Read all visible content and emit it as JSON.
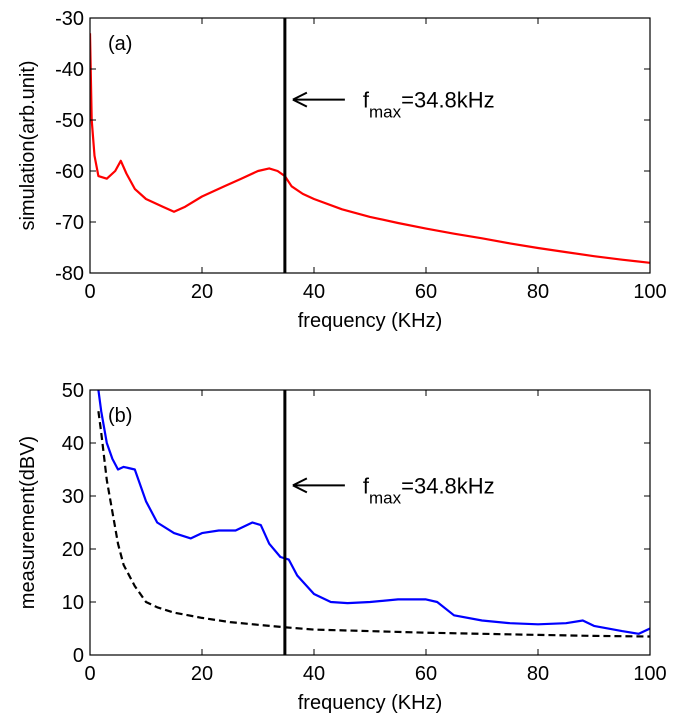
{
  "chart_data": [
    {
      "type": "line",
      "panel_label": "(a)",
      "xlabel": "frequency (KHz)",
      "ylabel": "simulation(arb.unit)",
      "xlim": [
        0,
        100
      ],
      "ylim": [
        -80,
        -30
      ],
      "xticks": [
        0,
        20,
        40,
        60,
        80,
        100
      ],
      "yticks": [
        -80,
        -70,
        -60,
        -50,
        -40,
        -30
      ],
      "grid": false,
      "series": [
        {
          "color": "#ff0000",
          "line_style": "solid",
          "points": [
            [
              0,
              -33
            ],
            [
              0.3,
              -50
            ],
            [
              0.8,
              -57
            ],
            [
              1.5,
              -61
            ],
            [
              3,
              -61.5
            ],
            [
              4.5,
              -60
            ],
            [
              5.5,
              -58
            ],
            [
              6.5,
              -60.5
            ],
            [
              8,
              -63.5
            ],
            [
              10,
              -65.5
            ],
            [
              13,
              -67
            ],
            [
              15,
              -68
            ],
            [
              17,
              -67
            ],
            [
              20,
              -65
            ],
            [
              24,
              -63
            ],
            [
              27,
              -61.5
            ],
            [
              30,
              -60
            ],
            [
              32,
              -59.5
            ],
            [
              33.5,
              -60
            ],
            [
              34.8,
              -61
            ],
            [
              36,
              -63
            ],
            [
              38,
              -64.5
            ],
            [
              40,
              -65.5
            ],
            [
              45,
              -67.5
            ],
            [
              50,
              -69
            ],
            [
              55,
              -70.2
            ],
            [
              60,
              -71.3
            ],
            [
              65,
              -72.3
            ],
            [
              70,
              -73.2
            ],
            [
              75,
              -74.2
            ],
            [
              80,
              -75.1
            ],
            [
              85,
              -75.9
            ],
            [
              90,
              -76.7
            ],
            [
              95,
              -77.4
            ],
            [
              100,
              -78
            ]
          ]
        }
      ],
      "vline": {
        "x": 34.8,
        "color": "#000000"
      },
      "annotation": {
        "text_f": "f",
        "text_sub": "max",
        "text_value": "=34.8kHz",
        "arrow_to_x": 34.8,
        "arrow_y": -46
      }
    },
    {
      "type": "line",
      "panel_label": "(b)",
      "xlabel": "frequency (KHz)",
      "ylabel": "measurement(dBV)",
      "xlim": [
        0,
        100
      ],
      "ylim": [
        0,
        50
      ],
      "xticks": [
        0,
        20,
        40,
        60,
        80,
        100
      ],
      "yticks": [
        0,
        10,
        20,
        30,
        40,
        50
      ],
      "grid": false,
      "series": [
        {
          "color": "#0000ff",
          "line_style": "solid",
          "points": [
            [
              1.5,
              50
            ],
            [
              2,
              46
            ],
            [
              3,
              40
            ],
            [
              4,
              37
            ],
            [
              5,
              35
            ],
            [
              6,
              35.5
            ],
            [
              8,
              35
            ],
            [
              10,
              29
            ],
            [
              12,
              25
            ],
            [
              15,
              23
            ],
            [
              18,
              22
            ],
            [
              20,
              23
            ],
            [
              23,
              23.5
            ],
            [
              26,
              23.5
            ],
            [
              29,
              25
            ],
            [
              30.5,
              24.5
            ],
            [
              32,
              21
            ],
            [
              34,
              18.5
            ],
            [
              35.5,
              18
            ],
            [
              37,
              15
            ],
            [
              40,
              11.5
            ],
            [
              43,
              10
            ],
            [
              46,
              9.8
            ],
            [
              50,
              10
            ],
            [
              55,
              10.5
            ],
            [
              60,
              10.5
            ],
            [
              62,
              10
            ],
            [
              65,
              7.5
            ],
            [
              70,
              6.5
            ],
            [
              75,
              6
            ],
            [
              80,
              5.8
            ],
            [
              85,
              6
            ],
            [
              88,
              6.5
            ],
            [
              90,
              5.5
            ],
            [
              95,
              4.5
            ],
            [
              98,
              4
            ],
            [
              100,
              5
            ]
          ]
        },
        {
          "color": "#000000",
          "line_style": "dashed",
          "points": [
            [
              1.5,
              46
            ],
            [
              2,
              42
            ],
            [
              3,
              33
            ],
            [
              4,
              27
            ],
            [
              5,
              21
            ],
            [
              6,
              17
            ],
            [
              8,
              13
            ],
            [
              10,
              10
            ],
            [
              12,
              9
            ],
            [
              15,
              8
            ],
            [
              20,
              7
            ],
            [
              25,
              6.2
            ],
            [
              30,
              5.7
            ],
            [
              35,
              5.2
            ],
            [
              40,
              4.8
            ],
            [
              50,
              4.5
            ],
            [
              60,
              4.2
            ],
            [
              70,
              4
            ],
            [
              80,
              3.8
            ],
            [
              90,
              3.6
            ],
            [
              100,
              3.5
            ]
          ]
        }
      ],
      "vline": {
        "x": 34.8,
        "color": "#000000"
      },
      "annotation": {
        "text_f": "f",
        "text_sub": "max",
        "text_value": "=34.8kHz",
        "arrow_to_x": 34.8,
        "arrow_y": 32
      }
    }
  ]
}
